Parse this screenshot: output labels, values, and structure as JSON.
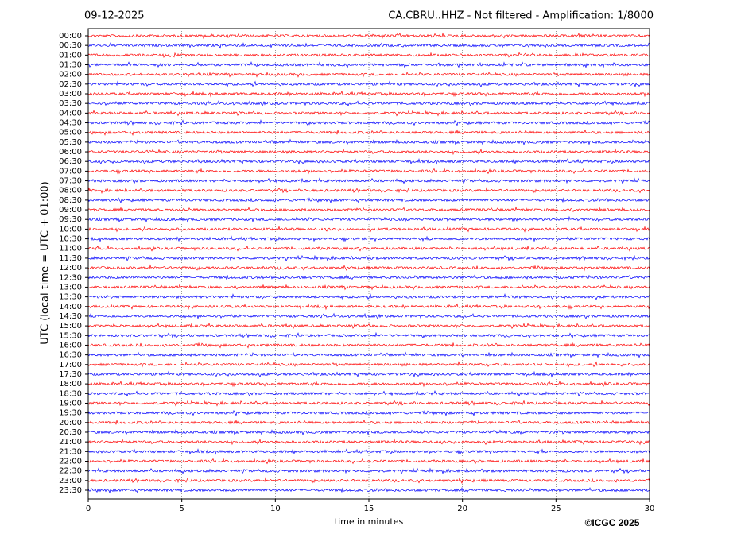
{
  "chart_data": {
    "type": "helicorder",
    "date": "09-12-2025",
    "title": "CA.CBRU..HHZ - Not filtered - Amplification: 1/8000",
    "ylabel": "UTC (local time = UTC + 01:00)",
    "xlabel": "time in minutes",
    "categories": [
      "00:00",
      "00:30",
      "01:00",
      "01:30",
      "02:00",
      "02:30",
      "03:00",
      "03:30",
      "04:00",
      "04:30",
      "05:00",
      "05:30",
      "06:00",
      "06:30",
      "07:00",
      "07:30",
      "08:00",
      "08:30",
      "09:00",
      "09:30",
      "10:00",
      "10:30",
      "11:00",
      "11:30",
      "12:00",
      "12:30",
      "13:00",
      "13:30",
      "14:00",
      "14:30",
      "15:00",
      "15:30",
      "16:00",
      "16:30",
      "17:00",
      "17:30",
      "18:00",
      "18:30",
      "19:00",
      "19:30",
      "20:00",
      "20:30",
      "21:00",
      "21:30",
      "22:00",
      "22:30",
      "23:00",
      "23:30"
    ],
    "xlim": [
      0,
      30
    ],
    "xticks": [
      0,
      5,
      10,
      15,
      20,
      25,
      30
    ],
    "grid": true,
    "colors": [
      "#ff0000",
      "#0000ff"
    ]
  },
  "footer": "©ICGC 2025"
}
